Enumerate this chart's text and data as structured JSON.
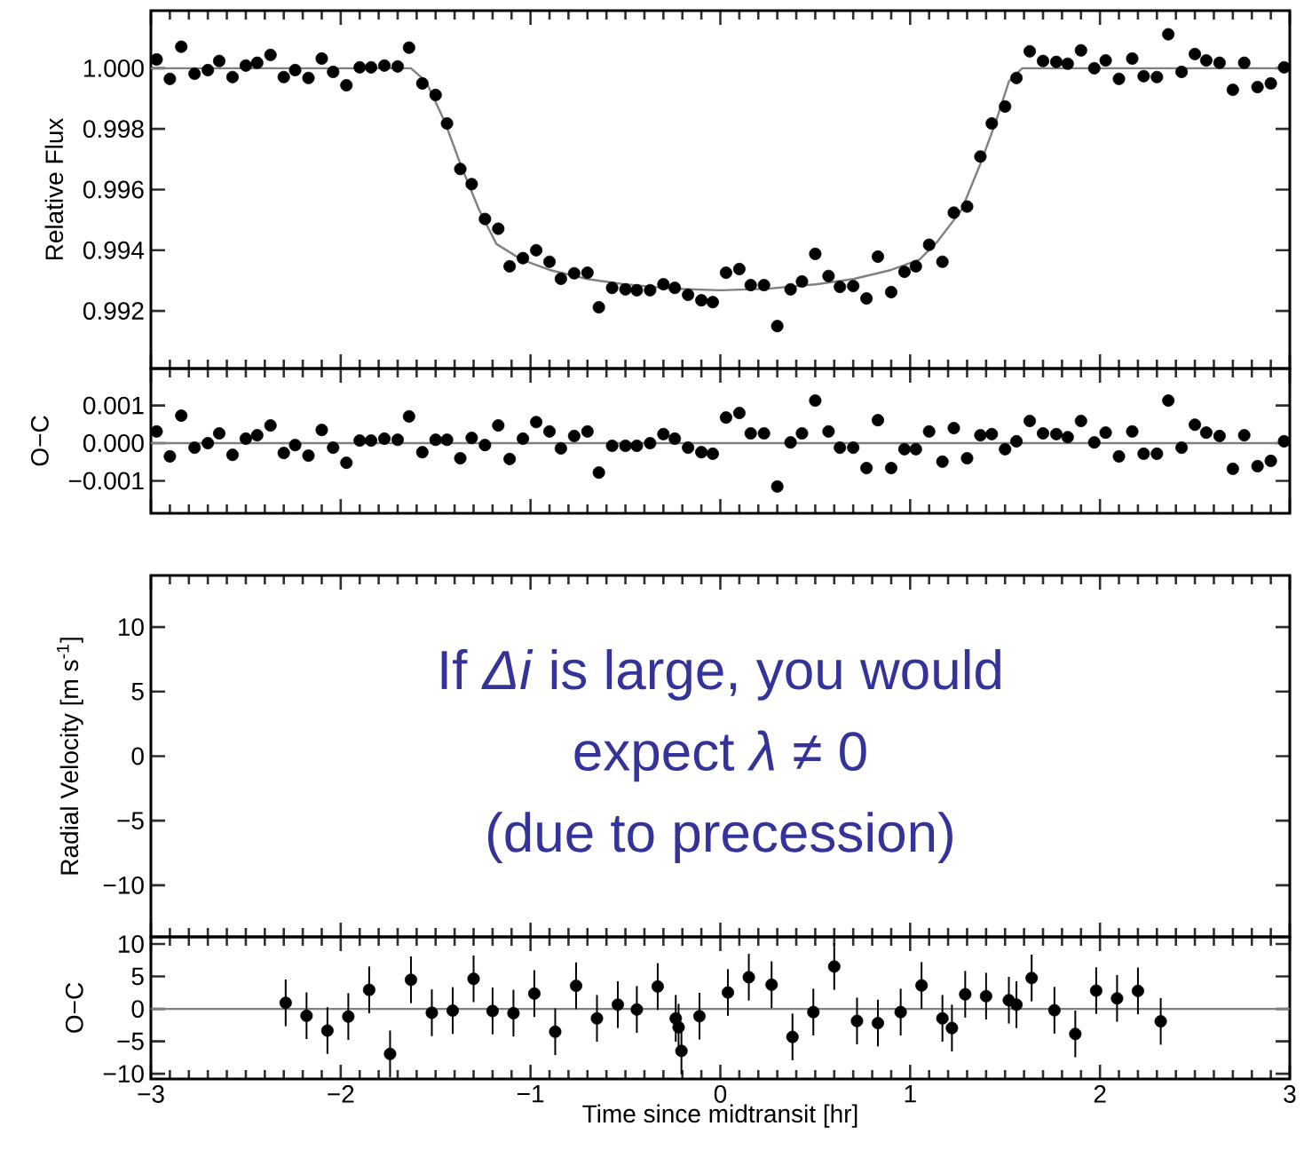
{
  "chart_data": [
    {
      "type": "scatter",
      "ylabel": "Relative Flux",
      "xlim": [
        -3,
        3
      ],
      "xticks": [
        -3,
        -2,
        -1,
        0,
        1,
        2,
        3
      ],
      "tick_labels": "y",
      "ylim": [
        0.9901,
        1.0019
      ],
      "yticks": [
        {
          "value": 0.992,
          "label": "0.992"
        },
        {
          "value": 0.994,
          "label": "0.994"
        },
        {
          "value": 0.996,
          "label": "0.996"
        },
        {
          "value": 0.998,
          "label": "0.998"
        },
        {
          "value": 1.0,
          "label": "1.000"
        }
      ],
      "series": [
        {
          "marker": "circle",
          "color": "#000000",
          "x": [
            -2.97,
            -2.9,
            -2.84,
            -2.77,
            -2.7,
            -2.64,
            -2.57,
            -2.5,
            -2.44,
            -2.37,
            -2.3,
            -2.24,
            -2.17,
            -2.1,
            -2.04,
            -1.97,
            -1.9,
            -1.84,
            -1.77,
            -1.7,
            -1.64,
            -1.57,
            -1.5,
            -1.44,
            -1.37,
            -1.31,
            -1.24,
            -1.17,
            -1.11,
            -1.04,
            -0.97,
            -0.9,
            -0.84,
            -0.77,
            -0.7,
            -0.64,
            -0.57,
            -0.5,
            -0.44,
            -0.37,
            -0.3,
            -0.24,
            -0.17,
            -0.1,
            -0.04,
            0.03,
            0.1,
            0.16,
            0.23,
            0.3,
            0.37,
            0.43,
            0.5,
            0.57,
            0.63,
            0.7,
            0.77,
            0.83,
            0.9,
            0.97,
            1.03,
            1.1,
            1.17,
            1.23,
            1.3,
            1.37,
            1.43,
            1.5,
            1.56,
            1.63,
            1.7,
            1.77,
            1.83,
            1.9,
            1.97,
            2.03,
            2.1,
            2.17,
            2.23,
            2.3,
            2.36,
            2.43,
            2.5,
            2.56,
            2.63,
            2.7,
            2.76,
            2.83,
            2.9,
            2.97
          ],
          "values": [
            1.00029,
            0.99965,
            1.00071,
            0.99982,
            0.99994,
            1.00024,
            0.99971,
            1.00009,
            1.00018,
            1.00044,
            0.99971,
            0.99994,
            0.99968,
            1.00032,
            0.99988,
            0.99944,
            1.00003,
            1.00003,
            1.00009,
            1.00006,
            1.00068,
            0.9995,
            0.99912,
            0.99818,
            0.99668,
            0.99618,
            0.99503,
            0.99471,
            0.99347,
            0.99374,
            0.994,
            0.99362,
            0.99306,
            0.99324,
            0.99326,
            0.99212,
            0.99276,
            0.99271,
            0.99268,
            0.99268,
            0.99288,
            0.99276,
            0.99253,
            0.99235,
            0.99229,
            0.99326,
            0.99338,
            0.99285,
            0.99285,
            0.9915,
            0.99271,
            0.99297,
            0.99388,
            0.99315,
            0.99279,
            0.99282,
            0.99241,
            0.99379,
            0.99262,
            0.99329,
            0.99347,
            0.99418,
            0.99362,
            0.99524,
            0.99544,
            0.99709,
            0.99818,
            0.99874,
            0.99968,
            1.00056,
            1.00024,
            1.00021,
            1.00015,
            1.00059,
            1.0,
            1.00026,
            0.99965,
            1.00032,
            0.99974,
            0.99971,
            1.00112,
            0.99988,
            1.00047,
            1.00026,
            1.00018,
            0.99929,
            1.00018,
            0.99938,
            0.9995,
            1.00003
          ]
        },
        {
          "type": "line",
          "marker": "none",
          "color": "#808080",
          "x": [
            -3,
            -1.63,
            -1.55,
            -1.45,
            -1.37,
            -1.27,
            -1.18,
            -1.05,
            -0.9,
            -0.7,
            -0.51,
            -0.25,
            0,
            0.25,
            0.51,
            0.7,
            0.9,
            1.05,
            1.14,
            1.27,
            1.37,
            1.45,
            1.52,
            1.59,
            3
          ],
          "values": [
            1,
            1,
            0.99956,
            0.99821,
            0.99685,
            0.99532,
            0.99421,
            0.9937,
            0.99335,
            0.99305,
            0.99288,
            0.99273,
            0.99268,
            0.99273,
            0.99288,
            0.99305,
            0.99335,
            0.9937,
            0.99426,
            0.99532,
            0.99685,
            0.99821,
            0.99956,
            1,
            1
          ]
        }
      ]
    },
    {
      "type": "scatter",
      "ylabel": "O−C",
      "xlim": [
        -3,
        3
      ],
      "xticks": [
        -3,
        -2,
        -1,
        0,
        1,
        2,
        3
      ],
      "tick_labels": "y",
      "ylim": [
        -0.00186,
        0.00198
      ],
      "yticks": [
        {
          "value": -0.001,
          "label": "−0.001"
        },
        {
          "value": 0,
          "label": "0.000"
        },
        {
          "value": 0.001,
          "label": "0.001"
        }
      ],
      "ref_lines": [
        {
          "axis": "y",
          "value": 0,
          "color": "#808080"
        }
      ],
      "series": [
        {
          "marker": "circle",
          "color": "#000000",
          "x": [
            -2.97,
            -2.9,
            -2.84,
            -2.77,
            -2.7,
            -2.64,
            -2.57,
            -2.5,
            -2.44,
            -2.37,
            -2.3,
            -2.24,
            -2.17,
            -2.1,
            -2.04,
            -1.97,
            -1.9,
            -1.84,
            -1.77,
            -1.7,
            -1.64,
            -1.57,
            -1.5,
            -1.44,
            -1.37,
            -1.31,
            -1.24,
            -1.17,
            -1.11,
            -1.04,
            -0.97,
            -0.9,
            -0.84,
            -0.77,
            -0.7,
            -0.64,
            -0.57,
            -0.5,
            -0.44,
            -0.37,
            -0.3,
            -0.24,
            -0.17,
            -0.1,
            -0.04,
            0.03,
            0.1,
            0.16,
            0.23,
            0.3,
            0.37,
            0.43,
            0.5,
            0.57,
            0.63,
            0.7,
            0.77,
            0.83,
            0.9,
            0.97,
            1.03,
            1.1,
            1.17,
            1.23,
            1.3,
            1.37,
            1.43,
            1.5,
            1.56,
            1.63,
            1.7,
            1.77,
            1.83,
            1.9,
            1.97,
            2.03,
            2.1,
            2.17,
            2.23,
            2.3,
            2.36,
            2.43,
            2.5,
            2.56,
            2.63,
            2.7,
            2.76,
            2.83,
            2.9,
            2.97
          ],
          "values": [
            0.00031,
            -0.00035,
            0.00073,
            -0.00012,
            0,
            0.00026,
            -0.00031,
            0.00012,
            0.00021,
            0.00047,
            -0.00026,
            -5e-05,
            -0.00033,
            0.00035,
            -0.00012,
            -0.00052,
            7e-05,
            7e-05,
            0.00012,
            9e-05,
            0.00071,
            -0.00024,
            9e-05,
            9e-05,
            -0.0004,
            0.00014,
            -5e-05,
            0.00047,
            -0.00042,
            0.00012,
            0.00056,
            0.00031,
            -0.00014,
            0.00019,
            0.00031,
            -0.00078,
            -7e-05,
            -7e-05,
            -7e-05,
            0,
            0.00024,
            0.00012,
            -0.00012,
            -0.00024,
            -0.00028,
            0.00068,
            0.0008,
            0.00026,
            0.00026,
            -0.00115,
            2e-05,
            0.00026,
            0.00113,
            0.00031,
            -0.00012,
            -0.00012,
            -0.00066,
            0.00061,
            -0.00066,
            -0.00016,
            -0.00016,
            0.00031,
            -0.00049,
            0.0004,
            -0.0004,
            0.00021,
            0.00024,
            -0.00016,
            5e-05,
            0.00059,
            0.00026,
            0.00024,
            0.00016,
            0.00059,
            2e-05,
            0.00028,
            -0.00035,
            0.00031,
            -0.00028,
            -0.00028,
            0.00113,
            -0.00012,
            0.00049,
            0.00028,
            0.00019,
            -0.00068,
            0.00021,
            -0.00061,
            -0.00047,
            5e-05
          ]
        }
      ]
    },
    {
      "type": "scatter",
      "ylabel": "Radial Velocity [m s$^{-1}$]",
      "xlim": [
        -3,
        3
      ],
      "xticks": [
        -3,
        -2,
        -1,
        0,
        1,
        2,
        3
      ],
      "tick_labels": "y",
      "ylim": [
        -14,
        14
      ],
      "yticks": [
        {
          "value": -10,
          "label": "−10"
        },
        {
          "value": -5,
          "label": "−5"
        },
        0,
        5,
        10
      ],
      "annotations": [
        "If *Δi* is large, you would",
        "expect *λ* ≠ 0",
        "(due to precession)"
      ]
    },
    {
      "type": "scatter",
      "ylabel": "O−C",
      "xlabel": "Time since midtransit [hr]",
      "xlim": [
        -3,
        3
      ],
      "xticks": [
        {
          "value": -3,
          "label": "−3"
        },
        {
          "value": -2,
          "label": "−2"
        },
        {
          "value": -1,
          "label": "−1"
        },
        0,
        1,
        2,
        3
      ],
      "ylim": [
        -10.8,
        11.1
      ],
      "yticks": [
        {
          "value": -10,
          "label": "−10"
        },
        {
          "value": -5,
          "label": "−5"
        },
        0,
        5,
        10
      ],
      "ref_lines": [
        {
          "axis": "y",
          "value": 0,
          "color": "#808080"
        }
      ],
      "series": [
        {
          "marker": "circle",
          "color": "#000000",
          "x": [
            -2.29,
            -2.18,
            -2.07,
            -1.96,
            -1.85,
            -1.74,
            -1.63,
            -1.52,
            -1.41,
            -1.3,
            -1.2,
            -1.09,
            -0.98,
            -0.87,
            -0.76,
            -0.65,
            -0.54,
            -0.44,
            -0.33,
            -0.235,
            -0.22,
            -0.205,
            -0.11,
            0.04,
            0.15,
            0.27,
            0.38,
            0.49,
            0.6,
            0.72,
            0.83,
            0.95,
            1.06,
            1.17,
            1.22,
            1.29,
            1.4,
            1.52,
            1.56,
            1.64,
            1.76,
            1.87,
            1.98,
            2.09,
            2.2,
            2.32
          ],
          "values": [
            0.93,
            -1.06,
            -3.34,
            -1.18,
            2.93,
            -6.94,
            4.48,
            -0.6,
            -0.26,
            4.64,
            -0.32,
            -0.66,
            2.36,
            -3.52,
            3.56,
            -1.46,
            0.65,
            -0.09,
            3.45,
            -1.46,
            -2.83,
            -6.48,
            -1.12,
            2.53,
            4.88,
            3.73,
            -4.32,
            -0.49,
            6.53,
            -1.86,
            -2.19,
            -0.49,
            3.62,
            -1.46,
            -2.95,
            2.25,
            1.96,
            1.34,
            0.65,
            4.76,
            -0.21,
            -3.86,
            2.82,
            1.62,
            2.77,
            -1.92
          ],
          "errors": [
            3.6,
            3.6,
            3.6,
            3.6,
            3.6,
            3.6,
            3.6,
            3.6,
            3.6,
            3.6,
            3.6,
            3.6,
            3.6,
            3.6,
            3.6,
            3.6,
            3.6,
            3.6,
            3.6,
            3.6,
            3.6,
            3.6,
            3.6,
            3.6,
            3.6,
            3.6,
            3.6,
            3.6,
            3.6,
            3.6,
            3.6,
            3.6,
            3.6,
            3.6,
            3.6,
            3.6,
            3.6,
            3.6,
            3.6,
            3.6,
            3.6,
            3.6,
            3.6,
            3.6,
            3.6,
            3.6
          ]
        }
      ]
    }
  ]
}
